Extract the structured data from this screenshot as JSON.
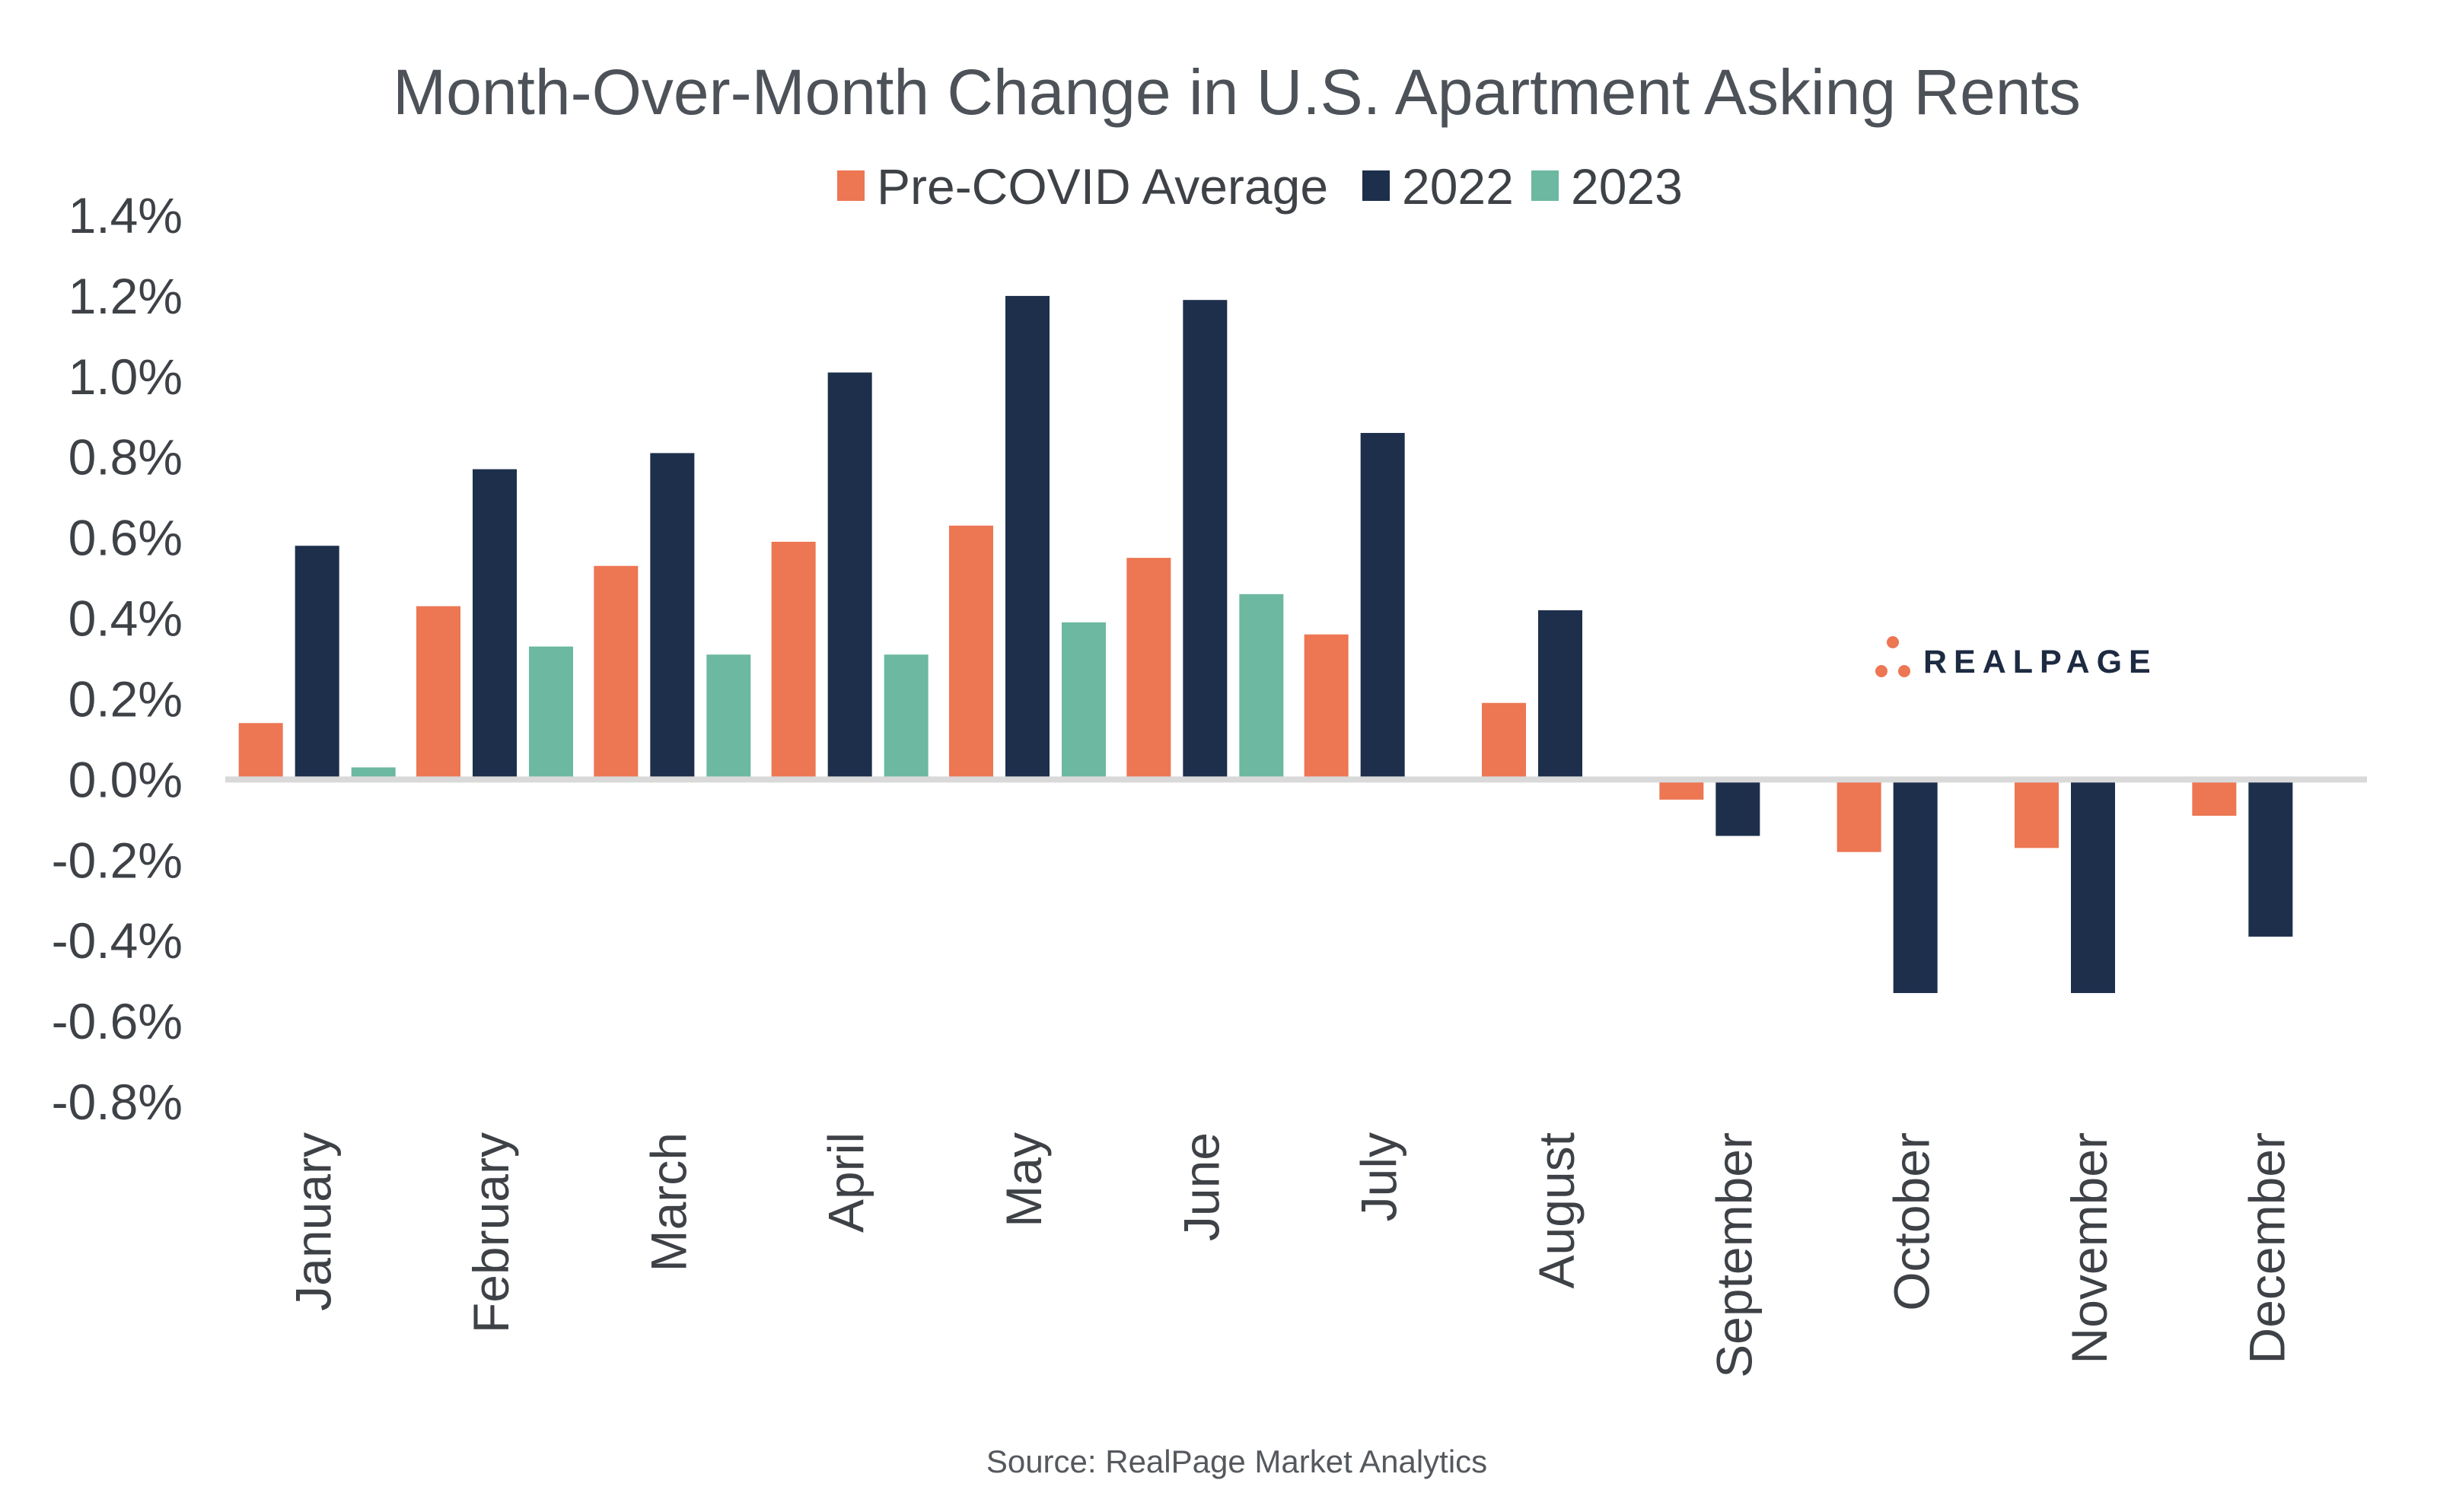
{
  "chart_data": {
    "type": "bar",
    "title": "Month-Over-Month Change in U.S. Apartment Asking Rents",
    "categories": [
      "January",
      "February",
      "March",
      "April",
      "May",
      "June",
      "July",
      "August",
      "September",
      "October",
      "November",
      "December"
    ],
    "series": [
      {
        "name": "Pre-COVID Average",
        "color": "#ed7653",
        "values": [
          0.14,
          0.43,
          0.53,
          0.59,
          0.63,
          0.55,
          0.36,
          0.19,
          -0.05,
          -0.18,
          -0.17,
          -0.09
        ]
      },
      {
        "name": "2022",
        "color": "#1d2f4b",
        "values": [
          0.58,
          0.77,
          0.81,
          1.01,
          1.2,
          1.19,
          0.86,
          0.42,
          -0.14,
          -0.53,
          -0.53,
          -0.39
        ]
      },
      {
        "name": "2023",
        "color": "#6cb8a0",
        "values": [
          0.03,
          0.33,
          0.31,
          0.31,
          0.39,
          0.46,
          null,
          null,
          null,
          null,
          null,
          null
        ]
      }
    ],
    "ylim": [
      -0.8,
      1.4
    ],
    "yticks": [
      "1.4%",
      "1.2%",
      "1.0%",
      "0.8%",
      "0.6%",
      "0.4%",
      "0.2%",
      "0.0%",
      "-0.2%",
      "-0.4%",
      "-0.6%",
      "-0.8%"
    ],
    "xlabel": "",
    "ylabel": "",
    "grid": false,
    "legend_position": "top-center",
    "source": "Source: RealPage Market Analytics"
  },
  "logo": {
    "text": "REALPAGE",
    "dot_color": "#ed7653"
  }
}
